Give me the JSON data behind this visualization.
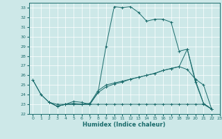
{
  "bg_color": "#cde8e8",
  "grid_color": "#ffffff",
  "line_color": "#1a6b6b",
  "xlabel": "Humidex (Indice chaleur)",
  "ylim": [
    22,
    33.5
  ],
  "xlim": [
    -0.5,
    23
  ],
  "yticks": [
    22,
    23,
    24,
    25,
    26,
    27,
    28,
    29,
    30,
    31,
    32,
    33
  ],
  "xticks": [
    0,
    1,
    2,
    3,
    4,
    5,
    6,
    7,
    8,
    9,
    10,
    11,
    12,
    13,
    14,
    15,
    16,
    17,
    18,
    19,
    20,
    21,
    22,
    23
  ],
  "line1_x": [
    0,
    1,
    2,
    3,
    4,
    5,
    6,
    7,
    8,
    9,
    10,
    11,
    12,
    13,
    14,
    15,
    16,
    17,
    18,
    19,
    20,
    21,
    22
  ],
  "line1_y": [
    25.5,
    24.0,
    23.2,
    22.8,
    23.0,
    23.1,
    23.0,
    23.0,
    24.2,
    29.0,
    33.1,
    33.0,
    33.1,
    32.5,
    31.6,
    31.8,
    31.8,
    31.5,
    28.5,
    28.7,
    25.3,
    23.1,
    22.5
  ],
  "line2_x": [
    0,
    1,
    2,
    3,
    4,
    5,
    6,
    7,
    8,
    9,
    10,
    11,
    12,
    13,
    14,
    15,
    16,
    17,
    18,
    19,
    20,
    21,
    22
  ],
  "line2_y": [
    25.5,
    24.0,
    23.2,
    23.0,
    23.0,
    23.3,
    23.2,
    23.0,
    24.2,
    24.8,
    25.1,
    25.3,
    25.6,
    25.8,
    26.0,
    26.2,
    26.5,
    26.7,
    26.9,
    26.6,
    25.6,
    25.0,
    22.5
  ],
  "line3_x": [
    2,
    3,
    4,
    5,
    6,
    7,
    8,
    9,
    10,
    11,
    12,
    13,
    14,
    15,
    16,
    17,
    18,
    19,
    20,
    21,
    22
  ],
  "line3_y": [
    23.2,
    22.8,
    23.0,
    23.0,
    23.0,
    23.1,
    24.4,
    25.0,
    25.2,
    25.4,
    25.6,
    25.8,
    26.0,
    26.2,
    26.5,
    26.7,
    26.9,
    28.7,
    25.5,
    23.1,
    22.5
  ],
  "line4_x": [
    2,
    3,
    4,
    5,
    6,
    7,
    8,
    9,
    10,
    11,
    12,
    13,
    14,
    15,
    16,
    17,
    18,
    19,
    20,
    21,
    22
  ],
  "line4_y": [
    23.2,
    22.8,
    23.0,
    23.0,
    23.0,
    23.0,
    23.0,
    23.0,
    23.0,
    23.0,
    23.0,
    23.0,
    23.0,
    23.0,
    23.0,
    23.0,
    23.0,
    23.0,
    23.0,
    23.0,
    22.5
  ]
}
